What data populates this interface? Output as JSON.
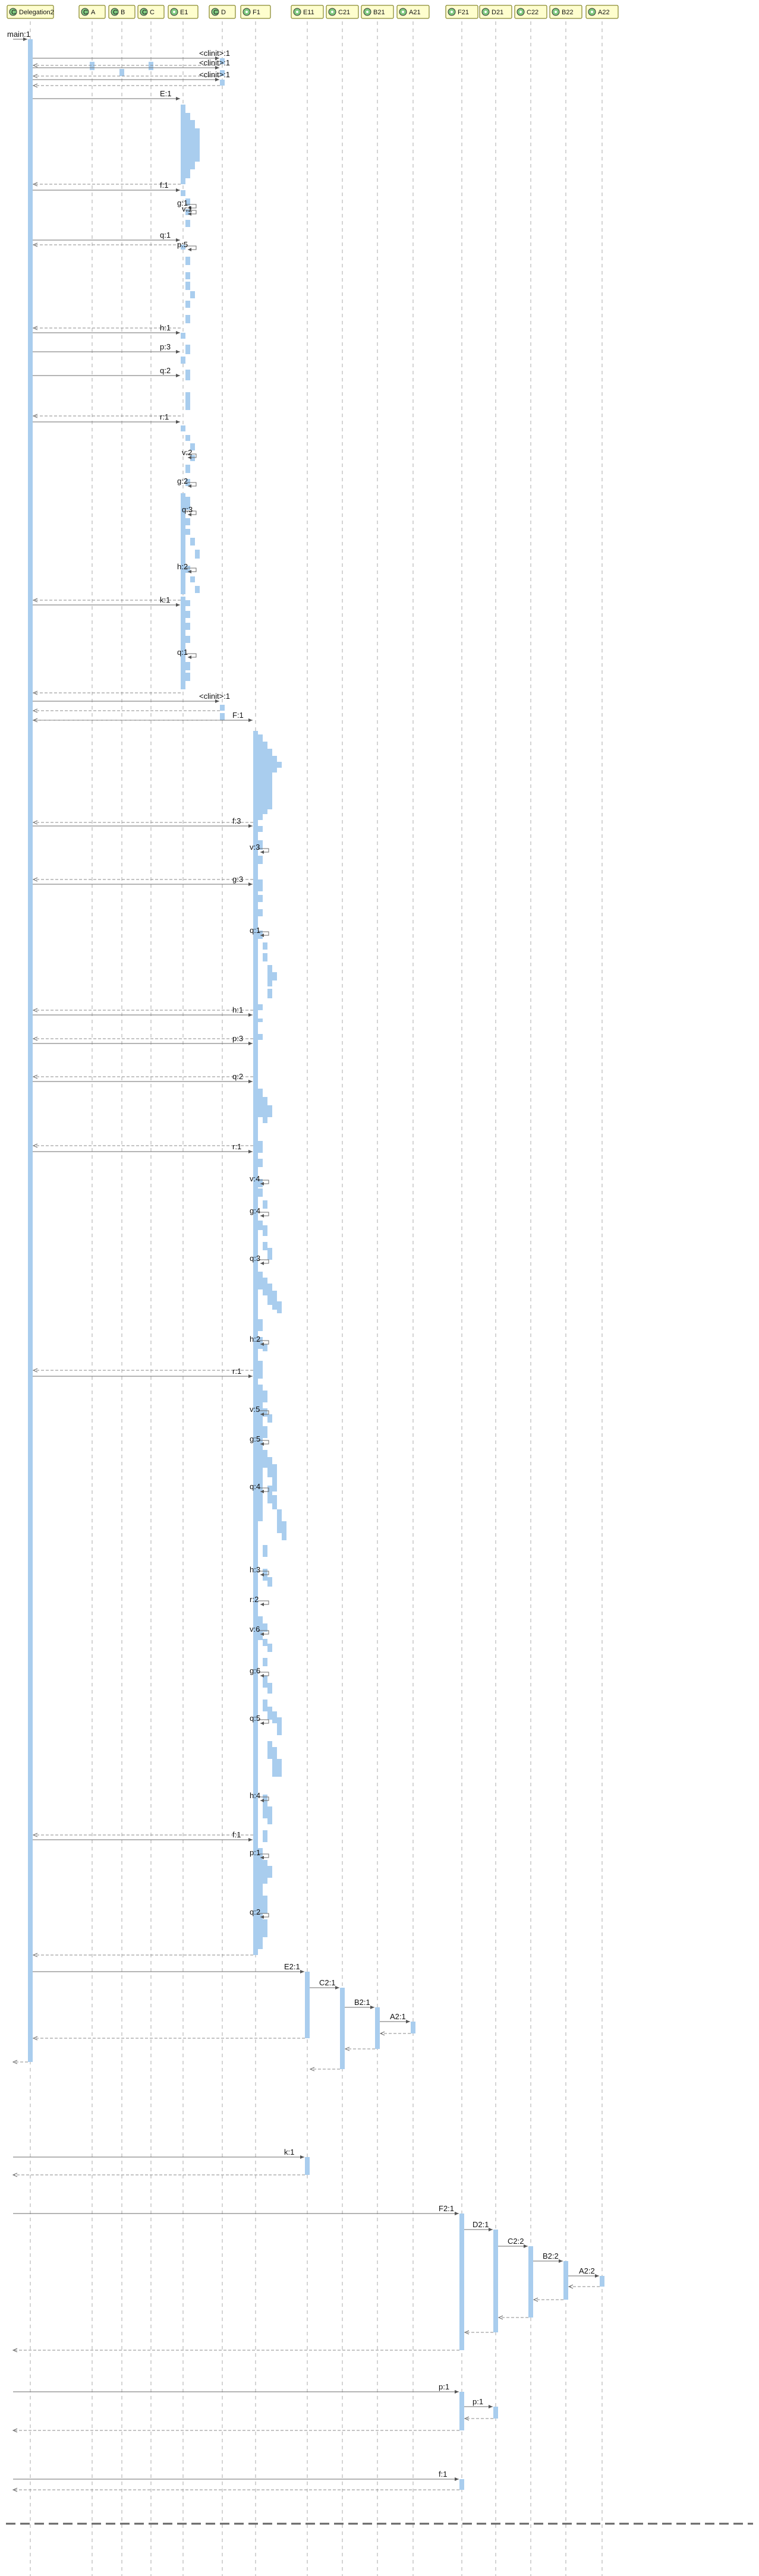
{
  "participants": [
    {
      "name": "Delegation2",
      "kind": "class"
    },
    {
      "name": "A",
      "kind": "class"
    },
    {
      "name": "B",
      "kind": "class"
    },
    {
      "name": "C",
      "kind": "class"
    },
    {
      "name": "E1",
      "kind": "object"
    },
    {
      "name": "D",
      "kind": "class"
    },
    {
      "name": "F1",
      "kind": "object"
    },
    {
      "name": "E11",
      "kind": "object"
    },
    {
      "name": "C21",
      "kind": "object"
    },
    {
      "name": "B21",
      "kind": "object"
    },
    {
      "name": "A21",
      "kind": "object"
    },
    {
      "name": "F21",
      "kind": "object"
    },
    {
      "name": "D21",
      "kind": "object"
    },
    {
      "name": "C22",
      "kind": "object"
    },
    {
      "name": "B22",
      "kind": "object"
    },
    {
      "name": "A22",
      "kind": "object"
    }
  ],
  "messages": [
    "main:1",
    "<clinit>:1",
    "<clinit>:1",
    "<clinit>:1",
    "E:1",
    "f:1",
    "g:1",
    "v:1",
    "q:1",
    "p:5",
    "h:1",
    "p:3",
    "q:2",
    "r:1",
    "v:2",
    "g:2",
    "q:3",
    "h:2",
    "k:1",
    "q:1",
    "<clinit>:1",
    "F:1",
    "f:3",
    "v:3",
    "g:3",
    "q:1",
    "h:1",
    "p:3",
    "q:2",
    "r:1",
    "v:4",
    "g:4",
    "q:3",
    "h:2",
    "r:1",
    "v:5",
    "g:5",
    "q:4",
    "h:3",
    "r:2",
    "v:6",
    "g:6",
    "q:5",
    "h:4",
    "f:1",
    "p:1",
    "q:2",
    "E2:1",
    "C2:1",
    "B2:1",
    "A2:1",
    "k:1",
    "F2:1",
    "D2:1",
    "C2:2",
    "B2:2",
    "A2:2",
    "p:1",
    "p:1",
    "f:1"
  ]
}
